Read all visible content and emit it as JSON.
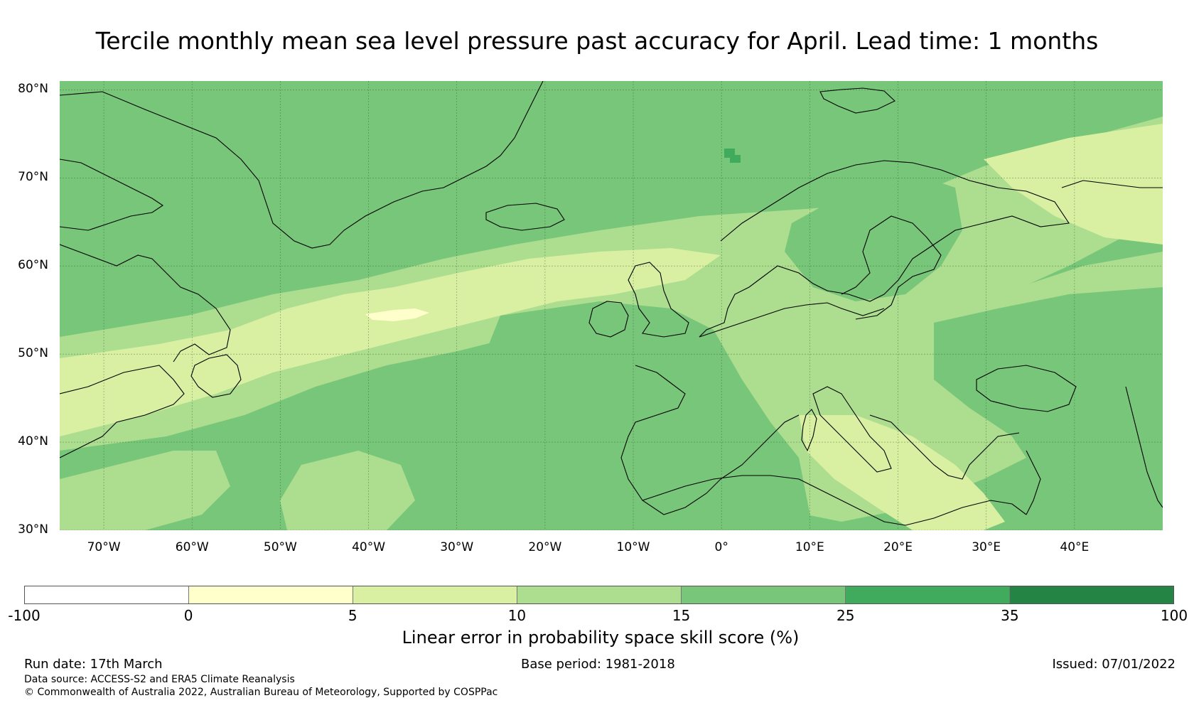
{
  "title": "Tercile monthly mean sea level pressure past accuracy for April. Lead time: 1 months",
  "map": {
    "region": "North Atlantic and Europe",
    "lat_labels": [
      "80°N",
      "70°N",
      "60°N",
      "50°N",
      "40°N",
      "30°N"
    ],
    "lon_labels": [
      "70°W",
      "60°W",
      "50°W",
      "40°W",
      "30°W",
      "20°W",
      "10°W",
      "0°",
      "10°E",
      "20°E",
      "30°E",
      "40°E"
    ],
    "lat_values": [
      80,
      70,
      60,
      50,
      40,
      30
    ],
    "lon_values": [
      -70,
      -60,
      -50,
      -40,
      -30,
      -20,
      -10,
      0,
      10,
      20,
      30,
      40
    ],
    "lon_range": [
      -75,
      50
    ],
    "lat_range": [
      30,
      81
    ],
    "field_colors": {
      "c0_5": "#ffffcc",
      "c5_10": "#d9f0a3",
      "c10_15": "#addd8e",
      "c15_25": "#78c679",
      "c25_35": "#41ab5d",
      "c35_100": "#238443"
    },
    "coast_color": "#000000"
  },
  "colorbar": {
    "ticks": [
      "-100",
      "0",
      "5",
      "10",
      "15",
      "25",
      "35",
      "100"
    ],
    "colors": [
      "#ffffff",
      "#ffffcc",
      "#d9f0a3",
      "#addd8e",
      "#78c679",
      "#41ab5d",
      "#238443"
    ],
    "label": "Linear error in probability space skill score (%)"
  },
  "footer": {
    "run_date": "Run date: 17th March",
    "base_period": "Base period: 1981-2018",
    "issued": "Issued: 07/01/2022",
    "data_source": "Data source: ACCESS-S2 and ERA5 Climate Reanalysis",
    "copyright": "© Commonwealth of Australia 2022, Australian Bureau of Meteorology, Supported by COSPPac"
  }
}
